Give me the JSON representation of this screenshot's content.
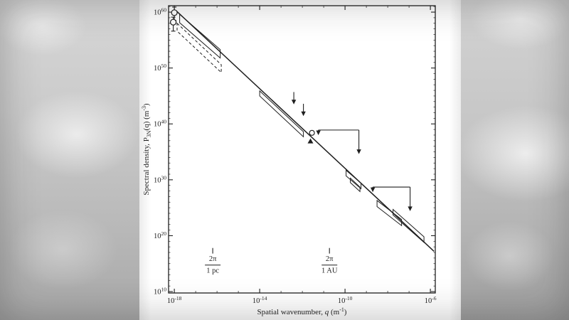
{
  "style": {
    "ink": "#1f1f1f",
    "paper": "#ffffff",
    "background_gray": "#bdbdbd"
  },
  "chart_data": {
    "type": "scatter",
    "title": "",
    "xlabel": "Spatial wavenumber, q (m⁻¹)",
    "ylabel": "Spectral density, P₃N(q) (m⁻³)",
    "xlabel_segments": [
      {
        "t": "Spatial wavenumber, "
      },
      {
        "t": "q",
        "italic": true
      },
      {
        "t": " (m"
      },
      {
        "t": "-1",
        "sup": true
      },
      {
        "t": ")"
      }
    ],
    "ylabel_segments": [
      {
        "t": "Spectral density, P"
      },
      {
        "t": "3N",
        "sub": true
      },
      {
        "t": "(q) (m"
      },
      {
        "t": "-3",
        "sup": true
      },
      {
        "t": ")"
      }
    ],
    "axes": {
      "x_scale": "log10",
      "y_scale": "log10",
      "xlim_exponents": [
        -18.27,
        -5.77
      ],
      "ylim_exponents": [
        9.75,
        61.15
      ],
      "x_major_exponents": [
        -18,
        -14,
        -10,
        -6
      ],
      "y_major_exponents": [
        10,
        20,
        30,
        40,
        50,
        60
      ],
      "x_tick_labels": [
        "10⁻¹⁸",
        "10⁻¹⁴",
        "10⁻¹⁰",
        "10⁻⁶"
      ],
      "y_tick_labels": [
        "10¹⁰",
        "10²⁰",
        "10³⁰",
        "10⁴⁰",
        "10⁵⁰",
        "10⁶⁰"
      ],
      "grid": false
    },
    "main_line": {
      "x1": -17.93,
      "y1": 60.3,
      "x2": -5.83,
      "y2": 17.2
    },
    "points": [
      {
        "x": -18.0,
        "y": 59.9,
        "err_up": 1.0,
        "err_down": 1.4
      },
      {
        "x": -18.05,
        "y": 58.2,
        "err_up": 0.9,
        "err_down": 1.6
      }
    ],
    "solid_boxes": [
      {
        "x1": -17.75,
        "y1": 59.6,
        "x2": -15.85,
        "y2": 53.3,
        "h": 1.5
      },
      {
        "x1": -14.0,
        "y1": 45.9,
        "x2": -11.95,
        "y2": 38.6,
        "h": 0.9
      },
      {
        "x1": -9.95,
        "y1": 31.7,
        "x2": -9.25,
        "y2": 29.4,
        "h": 1.0
      },
      {
        "x1": -9.75,
        "y1": 30.3,
        "x2": -9.3,
        "y2": 28.7,
        "h": 0.8
      },
      {
        "x1": -8.5,
        "y1": 26.3,
        "x2": -7.35,
        "y2": 22.9,
        "h": 1.1
      },
      {
        "x1": -7.75,
        "y1": 24.7,
        "x2": -6.3,
        "y2": 19.8,
        "h": 1.0
      }
    ],
    "dashed_boxes": [
      {
        "x1": -17.87,
        "y1": 58.0,
        "x2": -15.8,
        "y2": 50.6,
        "h": 1.4
      }
    ],
    "upper_limit_arrows": [
      {
        "x": -12.4,
        "y": 45.7,
        "length": 2.2
      },
      {
        "x": -11.95,
        "y": 43.6,
        "length": 2.2
      }
    ],
    "range_limit_brackets": [
      {
        "x1": -11.25,
        "x2": -9.35,
        "y": 38.9,
        "end_arrow_length": 4.3,
        "start_arrow_length": 0.9
      },
      {
        "x1": -8.7,
        "x2": -6.95,
        "y": 28.7,
        "end_arrow_length": 4.3,
        "start_arrow_length": 0.9
      }
    ],
    "extra_markers": {
      "circle": {
        "x": -11.55,
        "y": 38.4
      },
      "triangle": {
        "x": -11.62,
        "y": 36.9
      }
    },
    "scale_markers": [
      {
        "x": -16.2,
        "numerator": "2π",
        "denominator": "1 pc"
      },
      {
        "x": -10.73,
        "numerator": "2π",
        "denominator": "1 AU"
      }
    ]
  }
}
